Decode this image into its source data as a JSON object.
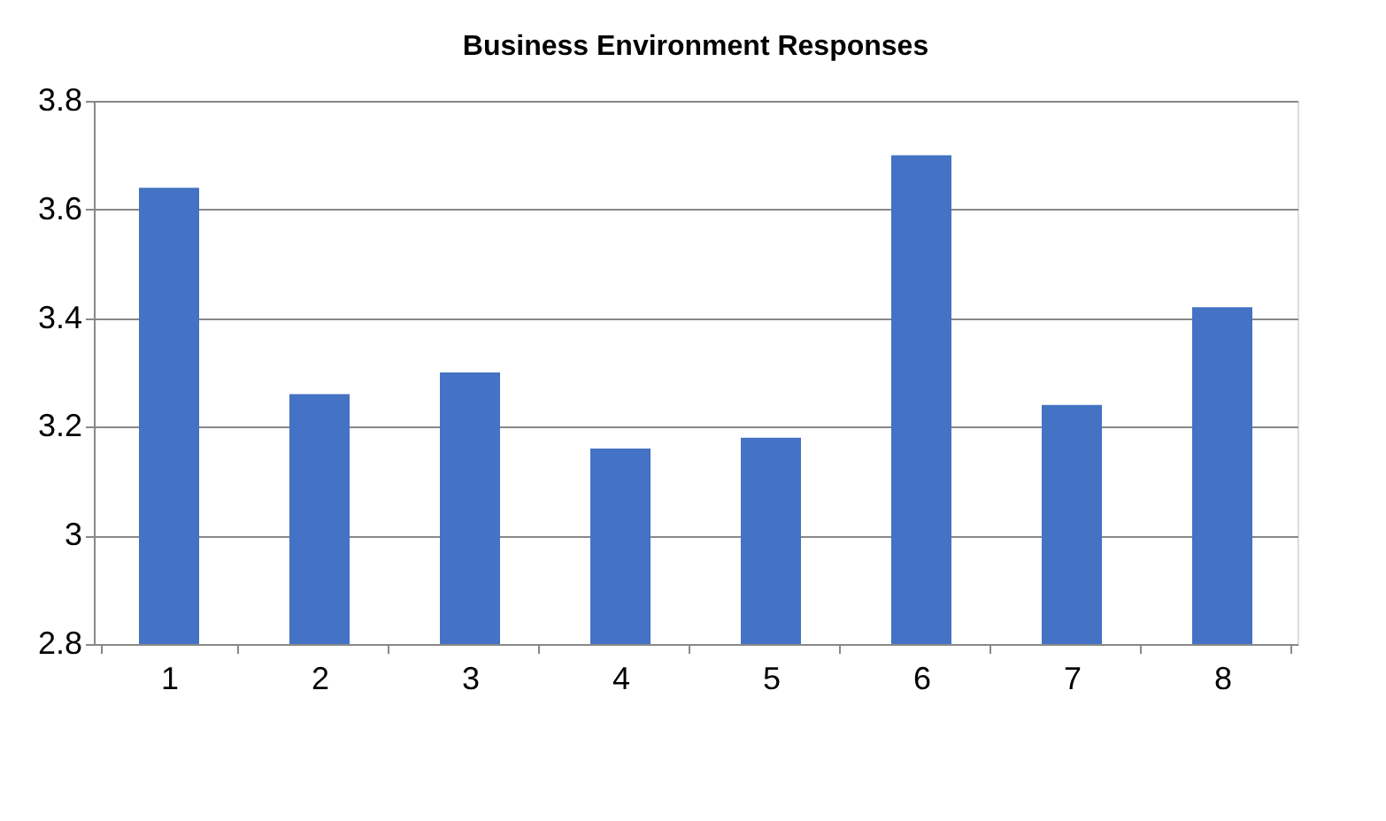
{
  "chart_data": {
    "type": "bar",
    "title": "Business Environment Responses",
    "categories": [
      "1",
      "2",
      "3",
      "4",
      "5",
      "6",
      "7",
      "8"
    ],
    "values": [
      3.64,
      3.26,
      3.3,
      3.16,
      3.18,
      3.7,
      3.24,
      3.42
    ],
    "color": "#4472c4",
    "ylim": [
      2.8,
      3.8
    ],
    "yticks": [
      2.8,
      {
        "value": 3,
        "label": "3"
      },
      3.2,
      3.4,
      3.6,
      3.8
    ],
    "grid": "y"
  }
}
